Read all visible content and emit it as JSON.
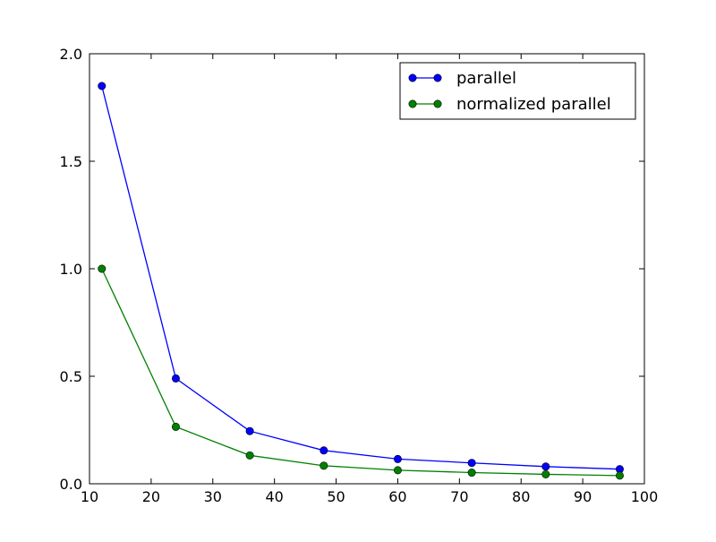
{
  "chart_data": {
    "type": "line",
    "title": "",
    "xlabel": "",
    "ylabel": "",
    "xlim": [
      10,
      100
    ],
    "ylim": [
      0.0,
      2.0
    ],
    "x_ticks": [
      10,
      20,
      30,
      40,
      50,
      60,
      70,
      80,
      90,
      100
    ],
    "y_ticks": [
      0.0,
      0.5,
      1.0,
      1.5,
      2.0
    ],
    "x_tick_labels": [
      "10",
      "20",
      "30",
      "40",
      "50",
      "60",
      "70",
      "80",
      "90",
      "100"
    ],
    "y_tick_labels": [
      "0.0",
      "0.5",
      "1.0",
      "1.5",
      "2.0"
    ],
    "grid": false,
    "legend_position": "top-right",
    "x": [
      12,
      24,
      36,
      48,
      60,
      72,
      84,
      96
    ],
    "series": [
      {
        "name": "parallel",
        "color": "#0000ff",
        "marker": "circle",
        "values": [
          1.85,
          0.49,
          0.245,
          0.155,
          0.115,
          0.097,
          0.08,
          0.068
        ]
      },
      {
        "name": "normalized parallel",
        "color": "#008000",
        "marker": "circle",
        "values": [
          1.0,
          0.265,
          0.132,
          0.084,
          0.063,
          0.052,
          0.044,
          0.038
        ]
      }
    ]
  }
}
